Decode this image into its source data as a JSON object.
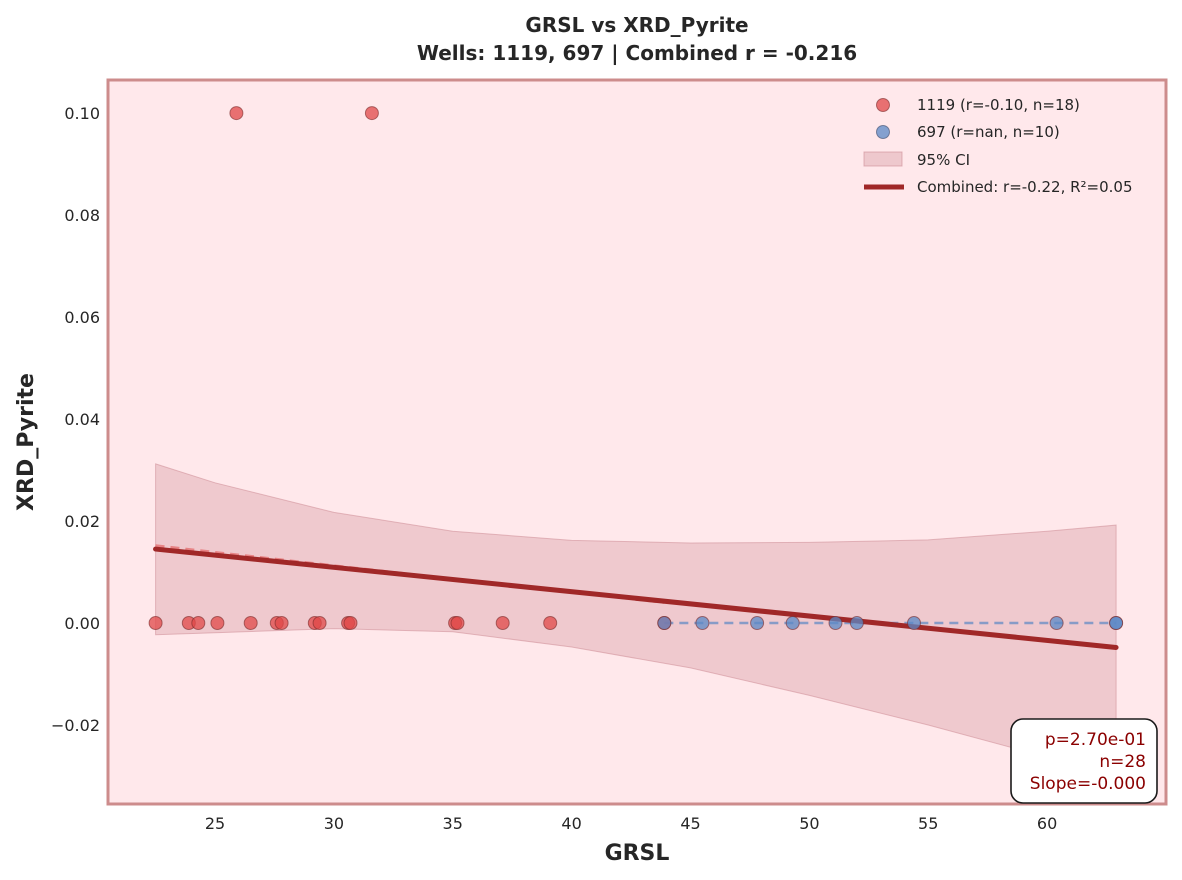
{
  "chart_data": {
    "type": "scatter",
    "title": "GRSL vs XRD_Pyrite",
    "subtitle": "Wells: 1119, 697 | Combined r = -0.216",
    "xlabel": "GRSL",
    "ylabel": "XRD_Pyrite",
    "xlim": [
      20.5,
      65
    ],
    "ylim": [
      -0.0355,
      0.1065
    ],
    "xticks": [
      25,
      30,
      35,
      40,
      45,
      50,
      55,
      60
    ],
    "yticks": [
      -0.02,
      0.0,
      0.02,
      0.04,
      0.06,
      0.08,
      0.1
    ],
    "ytick_labels": [
      "−0.02",
      "0.00",
      "0.02",
      "0.04",
      "0.06",
      "0.08",
      "0.10"
    ],
    "grid": false,
    "legend_position": "top-right",
    "colors": {
      "plot_bg": "#ffe8eb",
      "frame": "#cd8c8c",
      "series_1119": "#e04848",
      "series_697": "#5b88c5",
      "ci_fill": "#cd8c95",
      "fit_line": "#a02828",
      "stats_text": "#8b0000"
    },
    "series": [
      {
        "name": "1119 (r=-0.10, n=18)",
        "color": "#e04848",
        "x": [
          22.5,
          23.9,
          24.3,
          25.1,
          25.9,
          26.5,
          27.6,
          27.8,
          29.2,
          29.4,
          30.6,
          30.7,
          31.6,
          35.1,
          35.2,
          37.1,
          39.1,
          43.9
        ],
        "y": [
          0.0,
          0.0,
          0.0,
          0.0,
          0.1,
          0.0,
          0.0,
          0.0,
          0.0,
          0.0,
          0.0,
          0.0,
          0.1,
          0.0,
          0.0,
          0.0,
          0.0,
          0.0
        ]
      },
      {
        "name": "697 (r=nan, n=10)",
        "color": "#5b88c5",
        "x": [
          43.9,
          45.5,
          47.8,
          49.3,
          51.1,
          52.0,
          54.4,
          60.4,
          62.9,
          62.9
        ],
        "y": [
          0.0,
          0.0,
          0.0,
          0.0,
          0.0,
          0.0,
          0.0,
          0.0,
          0.0,
          0.0
        ],
        "trend": {
          "x": [
            43.9,
            62.9
          ],
          "y": [
            0.0,
            0.0
          ]
        }
      }
    ],
    "series_1119_trend": {
      "x": [
        22.5,
        43.9
      ],
      "y": [
        0.0152,
        0.004
      ]
    },
    "combined_fit": {
      "name": "Combined: r=-0.22, R²=0.05",
      "x": [
        22.5,
        62.9
      ],
      "y": [
        0.0145,
        -0.0048
      ]
    },
    "ci": {
      "name": "95% CI",
      "x": [
        22.5,
        25,
        30,
        35,
        40,
        45,
        50,
        55,
        60,
        62.9
      ],
      "upper": [
        0.0312,
        0.0275,
        0.0217,
        0.018,
        0.0162,
        0.0157,
        0.0158,
        0.0163,
        0.018,
        0.0192
      ],
      "lower": [
        -0.0023,
        -0.0019,
        -0.0011,
        -0.0017,
        -0.0047,
        -0.0088,
        -0.0142,
        -0.02,
        -0.0263,
        -0.0305
      ]
    },
    "stats_box": {
      "line1": "p=2.70e-01",
      "line2": "n=28",
      "line3": "Slope=-0.000"
    }
  }
}
